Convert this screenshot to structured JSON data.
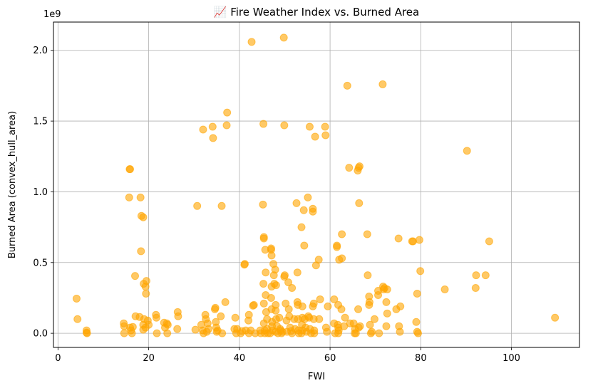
{
  "chart_data": {
    "type": "scatter",
    "title": "📈 Fire Weather Index vs. Burned Area",
    "xlabel": "FWI",
    "ylabel": "Burned Area (convex_hull_area)",
    "y_offset_label": "1e9",
    "xlim": [
      -1,
      115
    ],
    "ylim": [
      -0.1,
      2.2
    ],
    "x_ticks": [
      0,
      20,
      40,
      60,
      80,
      100
    ],
    "x_tick_labels": [
      "0",
      "20",
      "40",
      "60",
      "80",
      "100"
    ],
    "y_ticks": [
      0,
      0.5,
      1.0,
      1.5,
      2.0
    ],
    "y_tick_labels": [
      "0.0",
      "0.5",
      "1.0",
      "1.5",
      "2.0"
    ],
    "grid": true,
    "color": "#FFA500",
    "marker_alpha": 0.6,
    "points": [
      [
        4.1,
        0.245
      ],
      [
        4.3,
        0.1
      ],
      [
        6.3,
        0.02
      ],
      [
        6.3,
        0.005
      ],
      [
        6.4,
        0.0
      ],
      [
        14.5,
        0.07
      ],
      [
        14.6,
        0.05
      ],
      [
        14.6,
        0.0
      ],
      [
        15.8,
        1.16
      ],
      [
        15.9,
        1.16
      ],
      [
        15.7,
        0.96
      ],
      [
        15.9,
        0.04
      ],
      [
        16.1,
        0.02
      ],
      [
        16.5,
        0.045
      ],
      [
        16.3,
        0.0
      ],
      [
        17.0,
        0.405
      ],
      [
        17.1,
        0.12
      ],
      [
        18.0,
        0.115
      ],
      [
        18.2,
        0.96
      ],
      [
        18.4,
        0.83
      ],
      [
        18.8,
        0.82
      ],
      [
        18.3,
        0.58
      ],
      [
        18.9,
        0.35
      ],
      [
        19.3,
        0.33
      ],
      [
        19.5,
        0.37
      ],
      [
        19.4,
        0.28
      ],
      [
        18.8,
        0.06
      ],
      [
        19.3,
        0.04
      ],
      [
        19.0,
        0.1
      ],
      [
        19.8,
        0.09
      ],
      [
        20.0,
        0.06
      ],
      [
        18.8,
        0.025
      ],
      [
        21.6,
        0.13
      ],
      [
        21.7,
        0.11
      ],
      [
        21.8,
        0.0
      ],
      [
        23.4,
        0.075
      ],
      [
        23.6,
        0.04
      ],
      [
        24.0,
        0.07
      ],
      [
        24.1,
        0.0
      ],
      [
        24.2,
        0.06
      ],
      [
        26.4,
        0.15
      ],
      [
        26.5,
        0.12
      ],
      [
        26.3,
        0.03
      ],
      [
        30.3,
        0.025
      ],
      [
        30.7,
        0.9
      ],
      [
        31.6,
        0.06
      ],
      [
        32.0,
        1.44
      ],
      [
        31.9,
        0.02
      ],
      [
        32.1,
        0.0
      ],
      [
        32.5,
        0.13
      ],
      [
        32.6,
        0.1
      ],
      [
        32.8,
        0.01
      ],
      [
        33.0,
        0.07
      ],
      [
        33.2,
        0.03
      ],
      [
        34.1,
        1.46
      ],
      [
        34.2,
        1.38
      ],
      [
        34.6,
        0.17
      ],
      [
        34.7,
        0.18
      ],
      [
        34.8,
        0.08
      ],
      [
        34.9,
        0.04
      ],
      [
        35.2,
        0.02
      ],
      [
        35.0,
        0.01
      ],
      [
        35.9,
        0.12
      ],
      [
        36.1,
        0.9
      ],
      [
        36.2,
        0.0
      ],
      [
        36.9,
        0.22
      ],
      [
        37.3,
        1.56
      ],
      [
        37.2,
        1.47
      ],
      [
        38.9,
        0.03
      ],
      [
        39.1,
        0.11
      ],
      [
        39.3,
        0.0
      ],
      [
        39.5,
        0.03
      ],
      [
        40.3,
        0.0
      ],
      [
        40.6,
        0.015
      ],
      [
        41.1,
        0.485
      ],
      [
        41.2,
        0.49
      ],
      [
        41.4,
        0.02
      ],
      [
        42.1,
        0.13
      ],
      [
        42.0,
        0.09
      ],
      [
        42.1,
        0.0
      ],
      [
        42.5,
        0.02
      ],
      [
        42.7,
        2.06
      ],
      [
        43.2,
        0.2
      ],
      [
        43.0,
        0.195
      ],
      [
        43.5,
        0.0
      ],
      [
        44.6,
        0.02
      ],
      [
        44.7,
        0.0
      ],
      [
        45.3,
        1.48
      ],
      [
        45.2,
        0.91
      ],
      [
        45.4,
        0.68
      ],
      [
        45.4,
        0.67
      ],
      [
        45.3,
        0.35
      ],
      [
        45.4,
        0.21
      ],
      [
        45.4,
        0.07
      ],
      [
        45.6,
        0.02
      ],
      [
        45.6,
        0.0
      ],
      [
        45.7,
        0.59
      ],
      [
        45.8,
        0.43
      ],
      [
        45.8,
        0.27
      ],
      [
        45.9,
        0.15
      ],
      [
        46.1,
        0.1
      ],
      [
        46.1,
        0.03
      ],
      [
        46.3,
        0.0
      ],
      [
        46.8,
        0.0
      ],
      [
        47.0,
        0.6
      ],
      [
        47.0,
        0.59
      ],
      [
        47.1,
        0.55
      ],
      [
        47.1,
        0.33
      ],
      [
        47.0,
        0.25
      ],
      [
        47.1,
        0.17
      ],
      [
        47.2,
        0.08
      ],
      [
        47.2,
        0.05
      ],
      [
        47.3,
        0.02
      ],
      [
        47.5,
        0.49
      ],
      [
        47.6,
        0.41
      ],
      [
        47.7,
        0.35
      ],
      [
        47.9,
        0.45
      ],
      [
        48.1,
        0.34
      ],
      [
        48.0,
        0.2
      ],
      [
        48.0,
        0.16
      ],
      [
        48.1,
        0.1
      ],
      [
        48.3,
        0.05
      ],
      [
        48.0,
        0.01
      ],
      [
        48.5,
        0.0
      ],
      [
        48.8,
        0.11
      ],
      [
        49.0,
        0.03
      ],
      [
        49.1,
        0.02
      ],
      [
        49.3,
        0.0
      ],
      [
        49.5,
        0.01
      ],
      [
        49.8,
        2.09
      ],
      [
        49.9,
        1.47
      ],
      [
        49.9,
        0.4
      ],
      [
        50.0,
        0.41
      ],
      [
        50.2,
        0.21
      ],
      [
        50.4,
        0.09
      ],
      [
        50.5,
        0.01
      ],
      [
        50.8,
        0.36
      ],
      [
        50.9,
        0.17
      ],
      [
        51.0,
        0.12
      ],
      [
        51.2,
        0.04
      ],
      [
        51.4,
        0.015
      ],
      [
        51.6,
        0.32
      ],
      [
        51.6,
        0.0
      ],
      [
        52.1,
        0.1
      ],
      [
        52.3,
        0.03
      ],
      [
        52.6,
        0.92
      ],
      [
        52.8,
        0.43
      ],
      [
        52.8,
        0.22
      ],
      [
        52.9,
        0.2
      ],
      [
        52.9,
        0.1
      ],
      [
        53.0,
        0.02
      ],
      [
        53.1,
        0.0
      ],
      [
        53.7,
        0.75
      ],
      [
        53.9,
        0.19
      ],
      [
        53.9,
        0.11
      ],
      [
        53.8,
        0.06
      ],
      [
        53.9,
        0.02
      ],
      [
        53.7,
        0.0
      ],
      [
        54.2,
        0.87
      ],
      [
        54.3,
        0.62
      ],
      [
        54.4,
        0.1
      ],
      [
        54.6,
        0.04
      ],
      [
        54.8,
        0.01
      ],
      [
        55.1,
        0.96
      ],
      [
        55.2,
        0.12
      ],
      [
        55.5,
        1.46
      ],
      [
        55.4,
        0.11
      ],
      [
        55.6,
        0.03
      ],
      [
        55.8,
        0.0
      ],
      [
        56.2,
        0.88
      ],
      [
        56.2,
        0.86
      ],
      [
        56.4,
        0.21
      ],
      [
        56.2,
        0.19
      ],
      [
        56.4,
        0.1
      ],
      [
        56.5,
        0.02
      ],
      [
        56.5,
        0.0
      ],
      [
        56.7,
        1.39
      ],
      [
        56.9,
        0.48
      ],
      [
        57.5,
        0.52
      ],
      [
        57.8,
        0.24
      ],
      [
        57.6,
        0.1
      ],
      [
        58.9,
        1.46
      ],
      [
        59.0,
        1.4
      ],
      [
        59.1,
        0.04
      ],
      [
        59.3,
        0.01
      ],
      [
        59.5,
        0.19
      ],
      [
        60.9,
        0.24
      ],
      [
        60.9,
        0.07
      ],
      [
        61.1,
        0.0
      ],
      [
        61.5,
        0.62
      ],
      [
        61.5,
        0.61
      ],
      [
        61.8,
        0.2
      ],
      [
        61.7,
        0.06
      ],
      [
        61.8,
        0.04
      ],
      [
        61.9,
        0.02
      ],
      [
        61.8,
        0.0
      ],
      [
        62.0,
        0.52
      ],
      [
        62.6,
        0.53
      ],
      [
        62.6,
        0.7
      ],
      [
        62.5,
        0.17
      ],
      [
        63.3,
        0.11
      ],
      [
        63.1,
        0.05
      ],
      [
        63.8,
        1.75
      ],
      [
        64.2,
        1.17
      ],
      [
        64.4,
        0.07
      ],
      [
        65.2,
        0.07
      ],
      [
        65.5,
        0.03
      ],
      [
        65.4,
        0.0
      ],
      [
        65.7,
        0.0
      ],
      [
        66.1,
        1.15
      ],
      [
        66.3,
        1.17
      ],
      [
        66.5,
        1.18
      ],
      [
        66.4,
        0.92
      ],
      [
        66.2,
        0.17
      ],
      [
        66.3,
        0.04
      ],
      [
        66.6,
        0.05
      ],
      [
        68.2,
        0.7
      ],
      [
        68.3,
        0.41
      ],
      [
        68.6,
        0.26
      ],
      [
        68.7,
        0.22
      ],
      [
        68.6,
        0.2
      ],
      [
        68.8,
        0.06
      ],
      [
        69.2,
        0.01
      ],
      [
        69.0,
        0.0
      ],
      [
        69.8,
        0.1
      ],
      [
        70.6,
        0.3
      ],
      [
        70.6,
        0.27
      ],
      [
        70.8,
        0.0
      ],
      [
        71.6,
        1.76
      ],
      [
        71.7,
        0.33
      ],
      [
        71.8,
        0.31
      ],
      [
        72.0,
        0.32
      ],
      [
        72.6,
        0.31
      ],
      [
        72.4,
        0.22
      ],
      [
        72.6,
        0.14
      ],
      [
        72.4,
        0.05
      ],
      [
        74.6,
        0.17
      ],
      [
        75.1,
        0.67
      ],
      [
        75.5,
        0.19
      ],
      [
        75.2,
        0.05
      ],
      [
        75.4,
        0.01
      ],
      [
        78.1,
        0.65
      ],
      [
        78.3,
        0.65
      ],
      [
        79.2,
        0.28
      ],
      [
        79.0,
        0.08
      ],
      [
        79.2,
        0.01
      ],
      [
        79.4,
        0.0
      ],
      [
        79.7,
        0.66
      ],
      [
        79.9,
        0.44
      ],
      [
        85.3,
        0.31
      ],
      [
        90.2,
        1.29
      ],
      [
        92.1,
        0.32
      ],
      [
        92.2,
        0.41
      ],
      [
        94.3,
        0.41
      ],
      [
        95.1,
        0.65
      ],
      [
        109.6,
        0.11
      ]
    ]
  }
}
